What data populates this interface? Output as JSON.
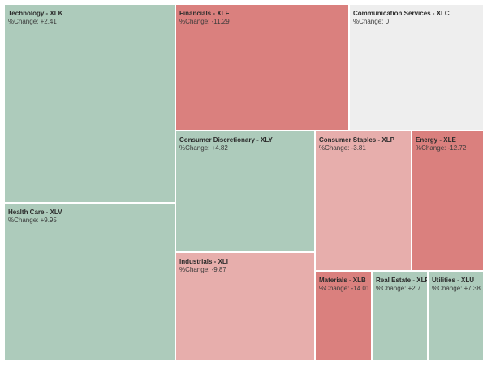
{
  "chart_data": {
    "type": "treemap",
    "change_label": "%Change: ",
    "sectors": [
      {
        "name": "Technology - XLK",
        "change": "+2.41",
        "value": 2.41
      },
      {
        "name": "Health Care - XLV",
        "change": "+9.95",
        "value": 9.95
      },
      {
        "name": "Financials - XLF",
        "change": "-11.29",
        "value": -11.29
      },
      {
        "name": "Communication Services - XLC",
        "change": "0",
        "value": 0
      },
      {
        "name": "Consumer Discretionary - XLY",
        "change": "+4.82",
        "value": 4.82
      },
      {
        "name": "Industrials - XLI",
        "change": "-9.87",
        "value": -9.87
      },
      {
        "name": "Consumer Staples - XLP",
        "change": "-3.81",
        "value": -3.81
      },
      {
        "name": "Energy - XLE",
        "change": "-12.72",
        "value": -12.72
      },
      {
        "name": "Materials - XLB",
        "change": "-14.01",
        "value": -14.01
      },
      {
        "name": "Real Estate - XLRE",
        "change": "+2.7",
        "value": 2.7
      },
      {
        "name": "Utilities - XLU",
        "change": "+7.38",
        "value": 7.38
      }
    ],
    "colors": {
      "positive": "#adcbbb",
      "neutral": "#eeeeee",
      "negative_light": "#e7aeac",
      "negative_strong": "#da807e"
    }
  }
}
